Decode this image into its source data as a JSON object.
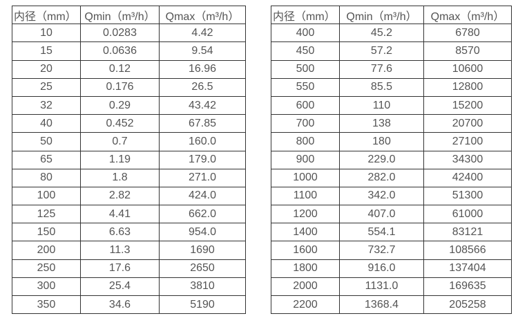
{
  "colors": {
    "border": "#333333",
    "text": "#545454",
    "background": "#ffffff"
  },
  "chart_data": [
    {
      "type": "table",
      "columns": [
        "内径（mm）",
        "Qmin（m³/h）",
        "Qmax（m³/h）"
      ],
      "rows": [
        [
          "10",
          "0.0283",
          "4.42"
        ],
        [
          "15",
          "0.0636",
          "9.54"
        ],
        [
          "20",
          "0.12",
          "16.96"
        ],
        [
          "25",
          "0.176",
          "26.5"
        ],
        [
          "32",
          "0.29",
          "43.42"
        ],
        [
          "40",
          "0.452",
          "67.85"
        ],
        [
          "50",
          "0.7",
          "160.0"
        ],
        [
          "65",
          "1.19",
          "179.0"
        ],
        [
          "80",
          "1.8",
          "271.0"
        ],
        [
          "100",
          "2.82",
          "424.0"
        ],
        [
          "125",
          "4.41",
          "662.0"
        ],
        [
          "150",
          "6.63",
          "954.0"
        ],
        [
          "200",
          "11.3",
          "1690"
        ],
        [
          "250",
          "17.6",
          "2650"
        ],
        [
          "300",
          "25.4",
          "3810"
        ],
        [
          "350",
          "34.6",
          "5190"
        ]
      ]
    },
    {
      "type": "table",
      "columns": [
        "内径（mm）",
        "Qmin（m³/h）",
        "Qmax（m³/h）"
      ],
      "rows": [
        [
          "400",
          "45.2",
          "6780"
        ],
        [
          "450",
          "57.2",
          "8570"
        ],
        [
          "500",
          "77.6",
          "10600"
        ],
        [
          "550",
          "85.5",
          "12800"
        ],
        [
          "600",
          "110",
          "15200"
        ],
        [
          "700",
          "138",
          "20700"
        ],
        [
          "800",
          "180",
          "27100"
        ],
        [
          "900",
          "229.0",
          "34300"
        ],
        [
          "1000",
          "282.0",
          "42400"
        ],
        [
          "1100",
          "342.0",
          "51300"
        ],
        [
          "1200",
          "407.0",
          "61000"
        ],
        [
          "1400",
          "554.1",
          "83121"
        ],
        [
          "1600",
          "732.7",
          "108566"
        ],
        [
          "1800",
          "916.0",
          "137404"
        ],
        [
          "2000",
          "1131.0",
          "169635"
        ],
        [
          "2200",
          "1368.4",
          "205258"
        ]
      ]
    }
  ]
}
